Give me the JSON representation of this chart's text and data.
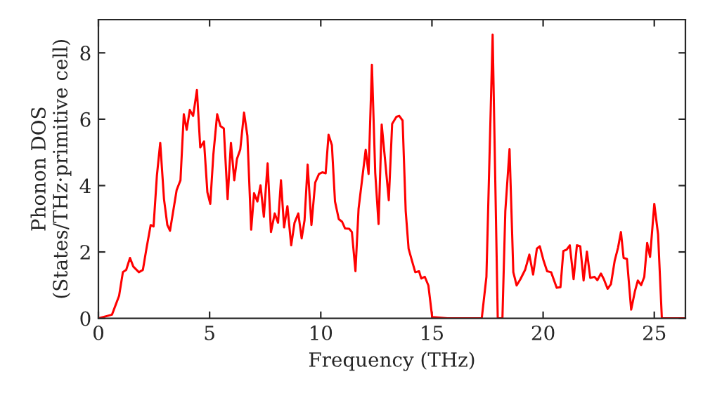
{
  "chart_data": {
    "type": "line",
    "xlabel": "Frequency (THz)",
    "ylabel": "Phonon DOS\n(States/THz·primitive cell)",
    "xlim": [
      0,
      26.4
    ],
    "ylim": [
      0,
      9
    ],
    "xticks": [
      0,
      5,
      10,
      15,
      20,
      25
    ],
    "yticks": [
      0,
      2,
      4,
      6,
      8
    ],
    "grid": false,
    "marker": "none",
    "line_style": "solid",
    "series": [
      {
        "color": "#ff0000",
        "x": [
          0.0,
          0.61,
          0.93,
          1.1,
          1.25,
          1.42,
          1.57,
          1.82,
          2.0,
          2.16,
          2.35,
          2.48,
          2.63,
          2.78,
          2.95,
          3.1,
          3.22,
          3.52,
          3.69,
          3.84,
          3.97,
          4.11,
          4.26,
          4.43,
          4.58,
          4.75,
          4.9,
          5.03,
          5.17,
          5.34,
          5.49,
          5.64,
          5.81,
          5.96,
          6.11,
          6.23,
          6.38,
          6.55,
          6.7,
          6.87,
          7.0,
          7.15,
          7.29,
          7.44,
          7.61,
          7.76,
          7.93,
          8.08,
          8.21,
          8.35,
          8.5,
          8.67,
          8.82,
          8.99,
          9.14,
          9.27,
          9.41,
          9.58,
          9.75,
          9.92,
          10.07,
          10.22,
          10.35,
          10.5,
          10.64,
          10.81,
          10.96,
          11.09,
          11.28,
          11.4,
          11.56,
          11.7,
          11.88,
          12.02,
          12.15,
          12.3,
          12.45,
          12.6,
          12.74,
          12.89,
          13.06,
          13.21,
          13.4,
          13.53,
          13.68,
          13.82,
          13.95,
          14.1,
          14.25,
          14.42,
          14.52,
          14.68,
          14.84,
          15.01,
          15.69,
          17.24,
          17.45,
          17.73,
          17.96,
          18.17,
          18.3,
          18.49,
          18.66,
          18.81,
          18.98,
          19.19,
          19.38,
          19.55,
          19.72,
          19.85,
          20.02,
          20.18,
          20.36,
          20.61,
          20.78,
          20.91,
          21.06,
          21.2,
          21.37,
          21.52,
          21.67,
          21.82,
          21.97,
          22.12,
          22.31,
          22.44,
          22.6,
          22.73,
          22.9,
          23.05,
          23.22,
          23.37,
          23.5,
          23.62,
          23.77,
          23.96,
          24.13,
          24.26,
          24.41,
          24.55,
          24.68,
          24.81,
          25.0,
          25.17,
          25.34,
          26.4
        ],
        "values": [
          0.0,
          0.11,
          0.68,
          1.39,
          1.46,
          1.82,
          1.56,
          1.39,
          1.46,
          2.1,
          2.81,
          2.77,
          4.3,
          5.29,
          3.59,
          2.81,
          2.64,
          3.87,
          4.16,
          6.15,
          5.68,
          6.28,
          6.1,
          6.88,
          5.15,
          5.33,
          3.8,
          3.45,
          4.94,
          6.15,
          5.79,
          5.72,
          3.59,
          5.29,
          4.16,
          4.8,
          5.09,
          6.2,
          5.5,
          2.67,
          3.77,
          3.52,
          4.01,
          3.06,
          4.67,
          2.6,
          3.16,
          2.88,
          4.16,
          2.74,
          3.38,
          2.2,
          2.88,
          3.16,
          2.41,
          2.95,
          4.63,
          2.81,
          4.09,
          4.35,
          4.4,
          4.37,
          5.53,
          5.22,
          3.52,
          2.99,
          2.91,
          2.71,
          2.7,
          2.6,
          1.42,
          3.3,
          4.3,
          5.08,
          4.35,
          7.64,
          4.38,
          2.84,
          5.84,
          4.79,
          3.56,
          5.86,
          6.07,
          6.1,
          5.96,
          3.23,
          2.1,
          1.74,
          1.39,
          1.42,
          1.2,
          1.25,
          0.99,
          0.04,
          0.0,
          0.0,
          1.25,
          8.55,
          0.0,
          0.0,
          3.23,
          5.1,
          1.39,
          0.99,
          1.18,
          1.46,
          1.92,
          1.32,
          2.1,
          2.17,
          1.74,
          1.42,
          1.39,
          0.92,
          0.94,
          2.03,
          2.07,
          2.2,
          1.18,
          2.2,
          2.17,
          1.14,
          2.01,
          1.22,
          1.25,
          1.15,
          1.35,
          1.18,
          0.89,
          1.03,
          1.74,
          2.13,
          2.6,
          1.82,
          1.79,
          0.26,
          0.82,
          1.14,
          1.0,
          1.25,
          2.27,
          1.85,
          3.45,
          2.53,
          0.0,
          0.0
        ]
      }
    ]
  }
}
